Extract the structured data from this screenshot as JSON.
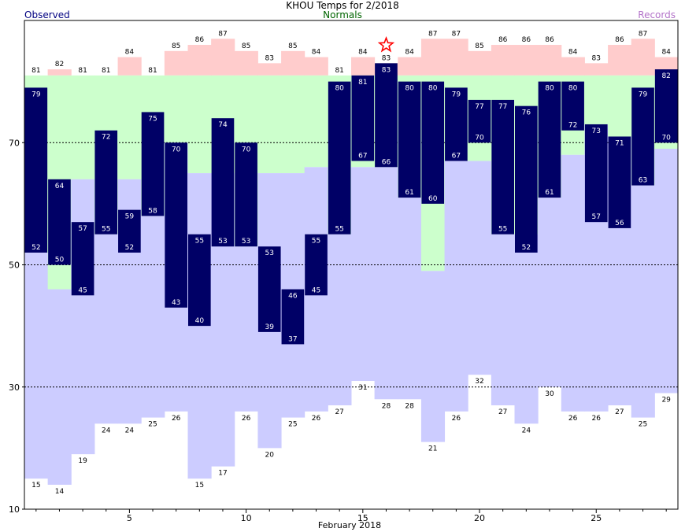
{
  "chart_data": {
    "type": "bar",
    "title": "KHOU Temps for 2/2018",
    "legend": {
      "observed": "Observed",
      "normals": "Normals",
      "records": "Records"
    },
    "xlabel": "February 2018",
    "ylim": [
      10,
      90
    ],
    "yticks": [
      10,
      30,
      50,
      70
    ],
    "xticks": [
      5,
      10,
      15,
      20,
      25
    ],
    "days": [
      1,
      2,
      3,
      4,
      5,
      6,
      7,
      8,
      9,
      10,
      11,
      12,
      13,
      14,
      15,
      16,
      17,
      18,
      19,
      20,
      21,
      22,
      23,
      24,
      25,
      26,
      27,
      28
    ],
    "observed_high": [
      79,
      64,
      57,
      72,
      59,
      75,
      70,
      55,
      74,
      70,
      53,
      46,
      55,
      80,
      81,
      83,
      80,
      80,
      79,
      77,
      77,
      76,
      80,
      80,
      73,
      71,
      79,
      82
    ],
    "observed_low": [
      52,
      50,
      45,
      55,
      52,
      58,
      43,
      40,
      53,
      53,
      39,
      37,
      45,
      55,
      67,
      66,
      61,
      60,
      67,
      70,
      55,
      52,
      61,
      72,
      57,
      56,
      63,
      70
    ],
    "normal_high": [
      81,
      81,
      81,
      81,
      81,
      81,
      81,
      81,
      81,
      81,
      81,
      81,
      81,
      81,
      81,
      81,
      81,
      81,
      81,
      81,
      81,
      81,
      81,
      81,
      81,
      81,
      81,
      81
    ],
    "normal_low": [
      52,
      46,
      64,
      55,
      64,
      58,
      70,
      65,
      65,
      53,
      65,
      65,
      66,
      55,
      66,
      66,
      61,
      49,
      67,
      67,
      55,
      55,
      61,
      68,
      73,
      71,
      63,
      69
    ],
    "record_high": [
      81,
      82,
      81,
      81,
      84,
      81,
      85,
      86,
      87,
      85,
      83,
      85,
      84,
      81,
      84,
      83,
      84,
      87,
      87,
      85,
      86,
      86,
      86,
      84,
      83,
      86,
      87,
      84
    ],
    "record_low": [
      15,
      14,
      19,
      24,
      24,
      25,
      26,
      15,
      17,
      26,
      20,
      25,
      26,
      27,
      31,
      28,
      28,
      21,
      26,
      32,
      27,
      24,
      30,
      26,
      26,
      27,
      25,
      29
    ],
    "colors": {
      "observed": "#000066",
      "normal_band": "#ccffcc",
      "record_high_band": "#ffcccc",
      "record_low_band": "#ccccff",
      "record_marker": "#ff0000",
      "observed_label": "#000080",
      "normals_label": "#006400",
      "records_label": "#b373c9"
    },
    "record_marker_day": 16,
    "grid": "dashed at 30, 50, 70"
  }
}
